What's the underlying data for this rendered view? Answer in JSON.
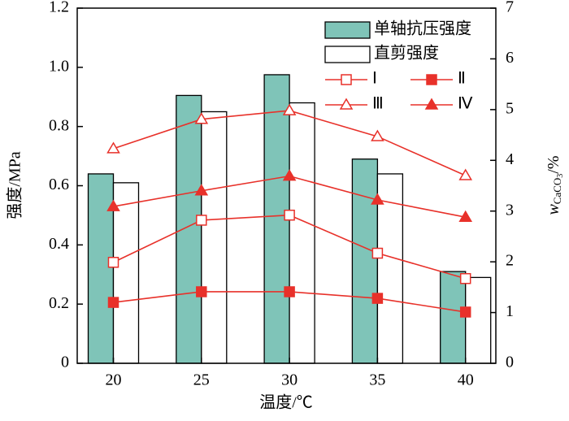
{
  "chart_data": {
    "type": "combo",
    "categories": [
      "20",
      "25",
      "30",
      "35",
      "40"
    ],
    "xlabel": "温度/℃",
    "ylabel": "强度/MPa",
    "y2label": {
      "main": "w",
      "sub": "CaCO",
      "subsub": "3",
      "unit": "/%"
    },
    "ylim": [
      0,
      1.2
    ],
    "yticks": [
      0,
      0.2,
      0.4,
      0.6,
      0.8,
      {
        "value": 1,
        "label": "1.0"
      },
      1.2
    ],
    "y2lim": [
      0,
      7
    ],
    "y2ticks": [
      0,
      1,
      2,
      3,
      4,
      5,
      6,
      7
    ],
    "series": [
      {
        "name": "单轴抗压强度",
        "type": "bar",
        "color": "#7fc4b8",
        "values": [
          0.64,
          0.905,
          0.975,
          0.69,
          0.31
        ]
      },
      {
        "name": "直剪强度",
        "type": "bar",
        "color": "#ffffff",
        "values": [
          0.61,
          0.85,
          0.88,
          0.64,
          0.29
        ]
      },
      {
        "name": "Ⅰ",
        "type": "line",
        "axis": "y2",
        "color": "#e8312a",
        "marker": "square-open",
        "values": [
          1.99,
          2.82,
          2.92,
          2.17,
          1.67
        ]
      },
      {
        "name": "Ⅱ",
        "type": "line",
        "axis": "y2",
        "color": "#e8312a",
        "marker": "square-filled",
        "values": [
          1.2,
          1.41,
          1.41,
          1.28,
          1.01
        ]
      },
      {
        "name": "Ⅲ",
        "type": "line",
        "axis": "y2",
        "color": "#e8312a",
        "marker": "triangle-open",
        "values": [
          4.23,
          4.81,
          4.98,
          4.47,
          3.7
        ]
      },
      {
        "name": "Ⅳ",
        "type": "line",
        "axis": "y2",
        "color": "#e8312a",
        "marker": "triangle-filled",
        "values": [
          3.09,
          3.4,
          3.69,
          3.22,
          2.88
        ]
      }
    ]
  }
}
